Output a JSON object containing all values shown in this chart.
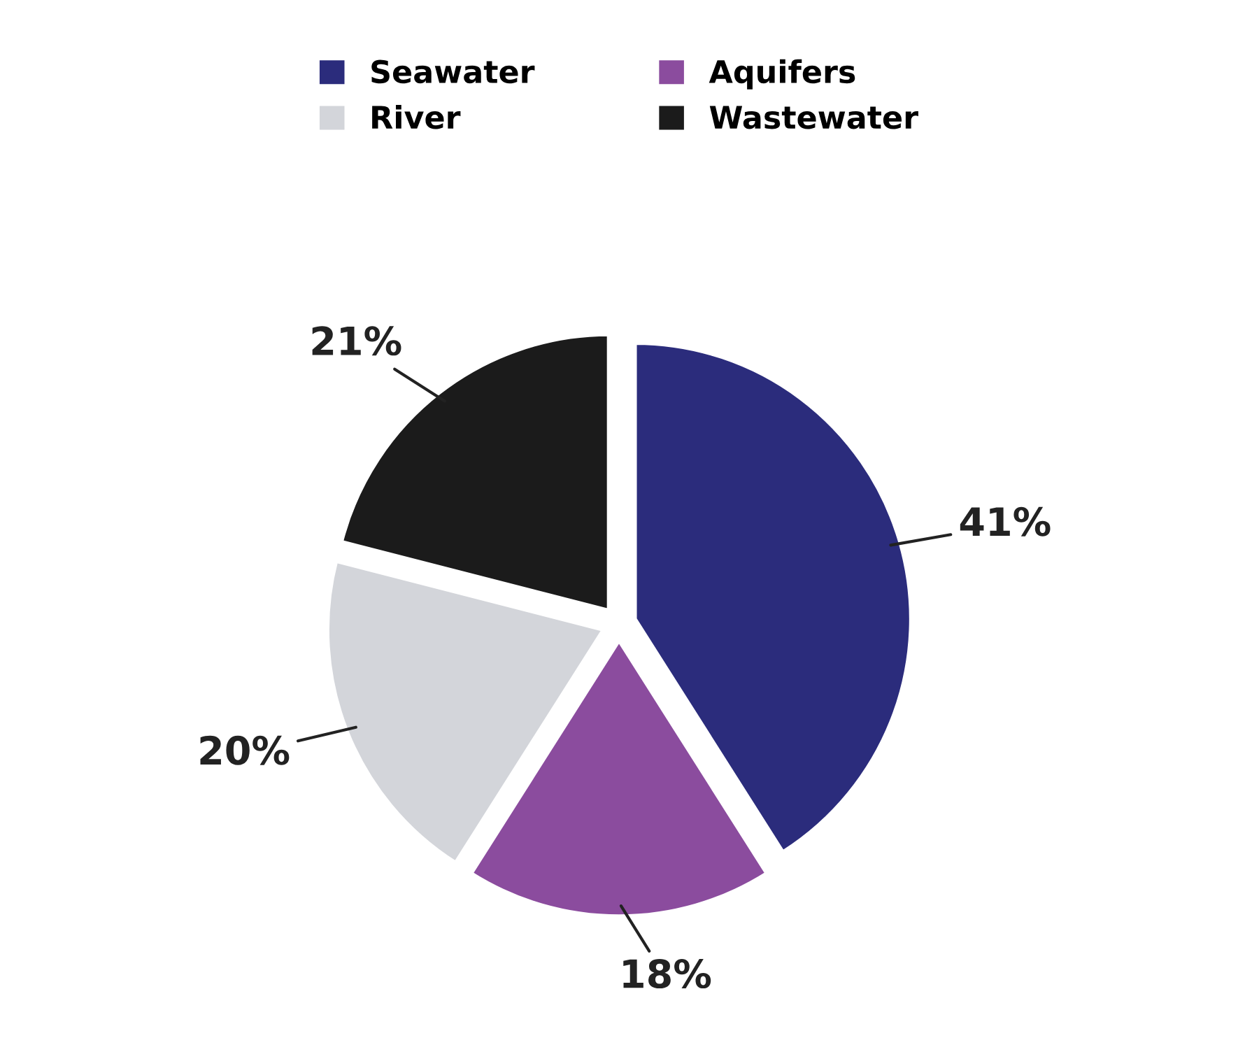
{
  "chart_data": {
    "type": "pie",
    "categories": [
      "Seawater",
      "Aquifers",
      "River",
      "Wastewater"
    ],
    "values": [
      41,
      18,
      20,
      21
    ],
    "colors": [
      "#2b2c7c",
      "#8b4c9e",
      "#d3d5da",
      "#1b1b1b"
    ],
    "value_labels": [
      "41%",
      "18%",
      "20%",
      "21%"
    ],
    "legend": "top"
  }
}
